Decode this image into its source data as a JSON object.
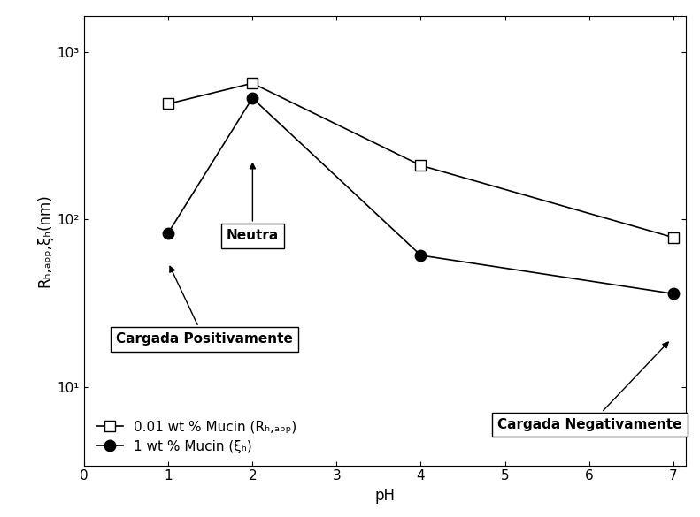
{
  "chart_data": {
    "type": "line",
    "x_label": "pH",
    "y_label": "Rₕ,ₐₚₚ,ξₕ(nm)",
    "log": "y",
    "grid": false,
    "legend": "lower left",
    "xlim": [
      0,
      7.15
    ],
    "xticks": [
      0,
      1,
      2,
      3,
      4,
      5,
      6,
      7
    ],
    "ylim": [
      3.4,
      1650
    ],
    "yticks": [
      {
        "value": 10,
        "label": "10¹"
      },
      {
        "value": 100,
        "label": "10²"
      },
      {
        "value": 1000,
        "label": "10³"
      }
    ],
    "series": [
      {
        "name": "0.01 wt % Mucin (Rₕ,ₐₚₚ)",
        "color": "#000000",
        "marker": "open_square",
        "line_style": "solid",
        "x": [
          1,
          2,
          4,
          7
        ],
        "values": [
          490,
          650,
          210,
          78
        ]
      },
      {
        "name": "1 wt % Mucin (ξₕ)",
        "color": "#000000",
        "marker": "filled_circle",
        "line_style": "solid",
        "x": [
          1,
          2,
          4,
          7
        ],
        "values": [
          83,
          530,
          61,
          36
        ]
      }
    ],
    "annotations": [
      "Cargada Positivamente",
      "Neutra",
      "Cargada Negativamente"
    ]
  }
}
